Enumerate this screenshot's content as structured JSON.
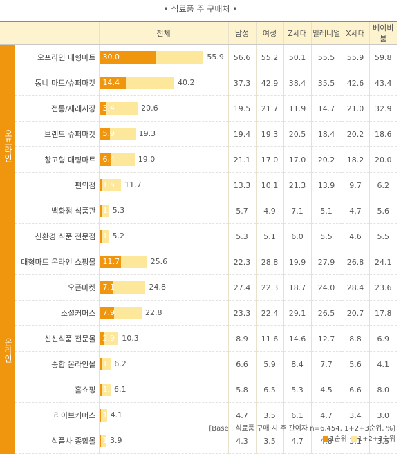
{
  "title": "• 식료품 주 구매처 •",
  "colors": {
    "rank1": "#f0960e",
    "rank123": "#fde79a",
    "group": "#f0960e"
  },
  "columns": [
    "전체",
    "남성",
    "여성",
    "Z세대",
    "밀레니얼",
    "X세대",
    "베이비붐"
  ],
  "groups": [
    {
      "name": "오프라인",
      "rows": [
        {
          "label": "오프라인 대형마트",
          "total": {
            "rank1": "30.0",
            "rank123": "55.9"
          },
          "demo": [
            "56.6",
            "55.2",
            "50.1",
            "55.5",
            "55.9",
            "59.8"
          ]
        },
        {
          "label": "동네 마트/슈퍼마켓",
          "total": {
            "rank1": "14.4",
            "rank123": "40.2"
          },
          "demo": [
            "37.3",
            "42.9",
            "38.4",
            "35.5",
            "42.6",
            "43.4"
          ]
        },
        {
          "label": "전통/재래시장",
          "total": {
            "rank1": "3.4",
            "rank123": "20.6"
          },
          "demo": [
            "19.5",
            "21.7",
            "11.9",
            "14.7",
            "21.0",
            "32.9"
          ]
        },
        {
          "label": "브랜드 슈퍼마켓",
          "total": {
            "rank1": "5.9",
            "rank123": "19.3"
          },
          "demo": [
            "19.4",
            "19.3",
            "20.5",
            "18.4",
            "20.2",
            "18.6"
          ]
        },
        {
          "label": "창고형 대형마트",
          "total": {
            "rank1": "6.4",
            "rank123": "19.0"
          },
          "demo": [
            "21.1",
            "17.0",
            "17.0",
            "20.2",
            "18.2",
            "20.0"
          ]
        },
        {
          "label": "편의점",
          "total": {
            "rank1": "1.5",
            "rank123": "11.7"
          },
          "demo": [
            "13.3",
            "10.1",
            "21.3",
            "13.9",
            "9.7",
            "6.2"
          ]
        },
        {
          "label": "백화점 식품관",
          "total": {
            "rank1": "1.5",
            "rank123": "5.3"
          },
          "demo": [
            "5.7",
            "4.9",
            "7.1",
            "5.1",
            "4.7",
            "5.6"
          ]
        },
        {
          "label": "친환경 식품 전문점",
          "total": {
            "rank1": "1.7",
            "rank123": "5.2"
          },
          "demo": [
            "5.3",
            "5.1",
            "6.0",
            "5.5",
            "4.6",
            "5.5"
          ]
        }
      ]
    },
    {
      "name": "온라인",
      "rows": [
        {
          "label": "대형마트 온라인 쇼핑몰",
          "total": {
            "rank1": "11.7",
            "rank123": "25.6"
          },
          "demo": [
            "22.3",
            "28.8",
            "19.9",
            "27.9",
            "26.8",
            "24.1"
          ]
        },
        {
          "label": "오픈마켓",
          "total": {
            "rank1": "7.1",
            "rank123": "24.8"
          },
          "demo": [
            "27.4",
            "22.3",
            "18.7",
            "24.0",
            "28.4",
            "23.6"
          ]
        },
        {
          "label": "소셜커머스",
          "total": {
            "rank1": "7.9",
            "rank123": "22.8"
          },
          "demo": [
            "23.3",
            "22.4",
            "29.1",
            "26.5",
            "20.7",
            "17.8"
          ]
        },
        {
          "label": "신선식품 전문몰",
          "total": {
            "rank1": "2.9",
            "rank123": "10.3"
          },
          "demo": [
            "8.9",
            "11.6",
            "14.6",
            "12.7",
            "8.8",
            "6.9"
          ]
        },
        {
          "label": "종합 온라인몰",
          "total": {
            "rank1": "1.8",
            "rank123": "6.2"
          },
          "demo": [
            "6.6",
            "5.9",
            "8.4",
            "7.7",
            "5.6",
            "4.1"
          ]
        },
        {
          "label": "홈쇼핑",
          "total": {
            "rank1": "1.5",
            "rank123": "6.1"
          },
          "demo": [
            "5.8",
            "6.5",
            "5.3",
            "4.5",
            "6.6",
            "8.0"
          ]
        },
        {
          "label": "라이브커머스",
          "total": {
            "rank1": "1.1",
            "rank123": "4.1"
          },
          "demo": [
            "4.7",
            "3.5",
            "6.1",
            "4.7",
            "3.4",
            "3.0"
          ]
        },
        {
          "label": "식품사 종합몰",
          "total": {
            "rank1": "1.0",
            "rank123": "3.9"
          },
          "demo": [
            "4.3",
            "3.5",
            "4.7",
            "4.8",
            "3.1",
            "3.5"
          ]
        }
      ]
    }
  ],
  "base_note": "[Base : 식료품 구매 시 주 관여자 n=6,454, 1+2+3순위, %]",
  "legend": {
    "rank1": "1순위",
    "rank123": "1+2+3순위"
  },
  "chart_data": {
    "type": "bar",
    "title": "• 식료품 주 구매처 •",
    "categories": [
      "오프라인 대형마트",
      "동네 마트/슈퍼마켓",
      "전통/재래시장",
      "브랜드 슈퍼마켓",
      "창고형 대형마트",
      "편의점",
      "백화점 식품관",
      "친환경 식품 전문점",
      "대형마트 온라인 쇼핑몰",
      "오픈마켓",
      "소셜커머스",
      "신선식품 전문몰",
      "종합 온라인몰",
      "홈쇼핑",
      "라이브커머스",
      "식품사 종합몰"
    ],
    "series": [
      {
        "name": "1순위",
        "values": [
          30.0,
          14.4,
          3.4,
          5.9,
          6.4,
          1.5,
          1.5,
          1.7,
          11.7,
          7.1,
          7.9,
          2.9,
          1.8,
          1.5,
          1.1,
          1.0
        ]
      },
      {
        "name": "1+2+3순위",
        "values": [
          55.9,
          40.2,
          20.6,
          19.3,
          19.0,
          11.7,
          5.3,
          5.2,
          25.6,
          24.8,
          22.8,
          10.3,
          6.2,
          6.1,
          4.1,
          3.9
        ]
      }
    ],
    "orientation": "horizontal",
    "stacked": false
  }
}
